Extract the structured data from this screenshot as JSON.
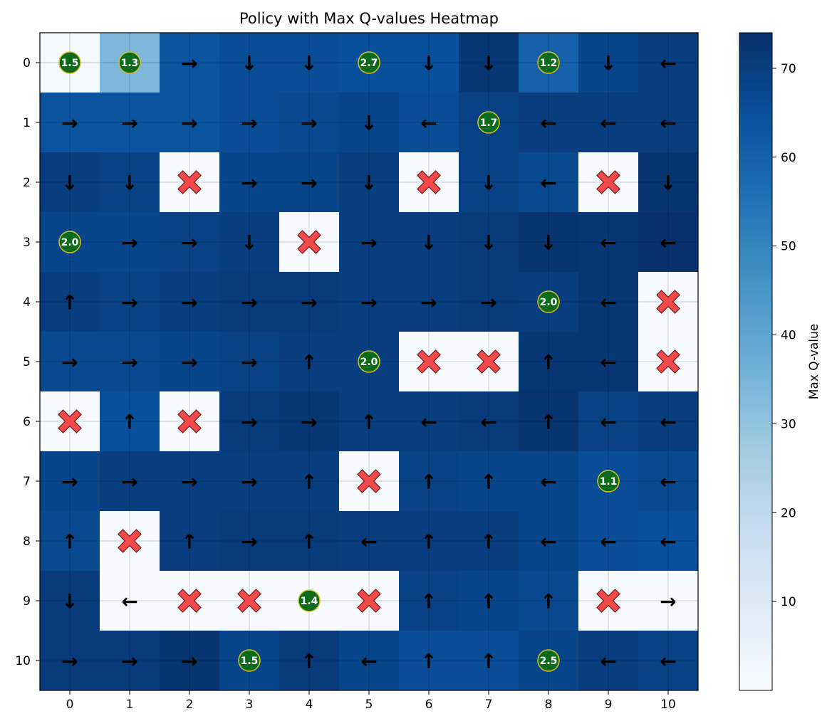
{
  "chart_data": {
    "type": "heatmap",
    "title": "Policy with Max Q-values Heatmap",
    "xlabel": "",
    "ylabel": "",
    "x_ticks": [
      "0",
      "1",
      "2",
      "3",
      "4",
      "5",
      "6",
      "7",
      "8",
      "9",
      "10"
    ],
    "y_ticks": [
      "0",
      "1",
      "2",
      "3",
      "4",
      "5",
      "6",
      "7",
      "8",
      "9",
      "10"
    ],
    "colorbar": {
      "label": "Max Q-value",
      "range": [
        0,
        74
      ],
      "ticks": [
        10,
        20,
        30,
        40,
        50,
        60,
        70
      ],
      "colormap": "Blues"
    },
    "grid": true,
    "values": [
      [
        1,
        34,
        64,
        66,
        66,
        65,
        65,
        72,
        60,
        68,
        70
      ],
      [
        64,
        64,
        64,
        66,
        67,
        68,
        66,
        69,
        70,
        70,
        70
      ],
      [
        70,
        69,
        0,
        68,
        68,
        70,
        0,
        69,
        67,
        0,
        73
      ],
      [
        68,
        68,
        69,
        70,
        0,
        70,
        70,
        71,
        73,
        72,
        74
      ],
      [
        70,
        69,
        70,
        71,
        71,
        70,
        70,
        71,
        70,
        72,
        0
      ],
      [
        67,
        67,
        68,
        69,
        70,
        70,
        0,
        0,
        72,
        72,
        0
      ],
      [
        0,
        65,
        0,
        71,
        72,
        70,
        70,
        71,
        73,
        69,
        70
      ],
      [
        68,
        70,
        70,
        70,
        70,
        0,
        69,
        68,
        68,
        66,
        67
      ],
      [
        67,
        0,
        70,
        71,
        71,
        70,
        70,
        70,
        68,
        66,
        65
      ],
      [
        71,
        0,
        0,
        0,
        0,
        0,
        69,
        68,
        67,
        0,
        0
      ],
      [
        71,
        71,
        73,
        68,
        71,
        68,
        66,
        66,
        68,
        70,
        69
      ]
    ],
    "policy": [
      [
        "",
        "",
        "→",
        "↓",
        "↓",
        "",
        "↓",
        "↓",
        "",
        "↓",
        "←"
      ],
      [
        "→",
        "→",
        "→",
        "→",
        "→",
        "↓",
        "←",
        "",
        "←",
        "←",
        "←"
      ],
      [
        "↓",
        "↓",
        "",
        "→",
        "→",
        "↓",
        "",
        "↓",
        "←",
        "",
        "↓"
      ],
      [
        "",
        "→",
        "→",
        "↓",
        "",
        "→",
        "↓",
        "↓",
        "↓",
        "←",
        "←"
      ],
      [
        "↑",
        "→",
        "→",
        "→",
        "→",
        "→",
        "→",
        "→",
        "",
        "←",
        ""
      ],
      [
        "→",
        "→",
        "→",
        "→",
        "↑",
        "",
        "",
        "",
        "↑",
        "←",
        ""
      ],
      [
        "",
        "↑",
        "",
        "→",
        "→",
        "↑",
        "←",
        "←",
        "↑",
        "←",
        "←"
      ],
      [
        "→",
        "→",
        "→",
        "→",
        "↑",
        "",
        "↑",
        "↑",
        "←",
        "",
        "←"
      ],
      [
        "↑",
        "",
        "↑",
        "→",
        "↑",
        "←",
        "↑",
        "↑",
        "←",
        "←",
        "←"
      ],
      [
        "↓",
        "←",
        "",
        "",
        "",
        "",
        "↑",
        "↑",
        "↑",
        "",
        "→"
      ],
      [
        "→",
        "→",
        "→",
        "",
        "↑",
        "←",
        "↑",
        "↑",
        "",
        "←",
        "←"
      ]
    ],
    "obstacles": [
      [
        2,
        2
      ],
      [
        2,
        6
      ],
      [
        2,
        9
      ],
      [
        3,
        4
      ],
      [
        4,
        10
      ],
      [
        5,
        6
      ],
      [
        5,
        7
      ],
      [
        5,
        10
      ],
      [
        6,
        0
      ],
      [
        6,
        2
      ],
      [
        7,
        5
      ],
      [
        8,
        1
      ],
      [
        9,
        2
      ],
      [
        9,
        3
      ],
      [
        9,
        5
      ],
      [
        9,
        9
      ]
    ],
    "goals": [
      {
        "row": 0,
        "col": 0,
        "label": "1.5"
      },
      {
        "row": 0,
        "col": 1,
        "label": "1.3"
      },
      {
        "row": 0,
        "col": 5,
        "label": "2.7"
      },
      {
        "row": 0,
        "col": 8,
        "label": "1.2"
      },
      {
        "row": 1,
        "col": 7,
        "label": "1.7"
      },
      {
        "row": 3,
        "col": 0,
        "label": "2.0"
      },
      {
        "row": 4,
        "col": 8,
        "label": "2.0"
      },
      {
        "row": 5,
        "col": 5,
        "label": "2.0"
      },
      {
        "row": 7,
        "col": 9,
        "label": "1.1"
      },
      {
        "row": 9,
        "col": 4,
        "label": "1.4"
      },
      {
        "row": 10,
        "col": 3,
        "label": "1.5"
      },
      {
        "row": 10,
        "col": 8,
        "label": "2.5"
      }
    ],
    "colors": {
      "obstacle_fill": "#f44a4a",
      "obstacle_edge": "#7a2222",
      "goal_fill": "#0b6b1b",
      "goal_edge": "#d8c02a",
      "empty_cell": "#f7fbff"
    }
  }
}
